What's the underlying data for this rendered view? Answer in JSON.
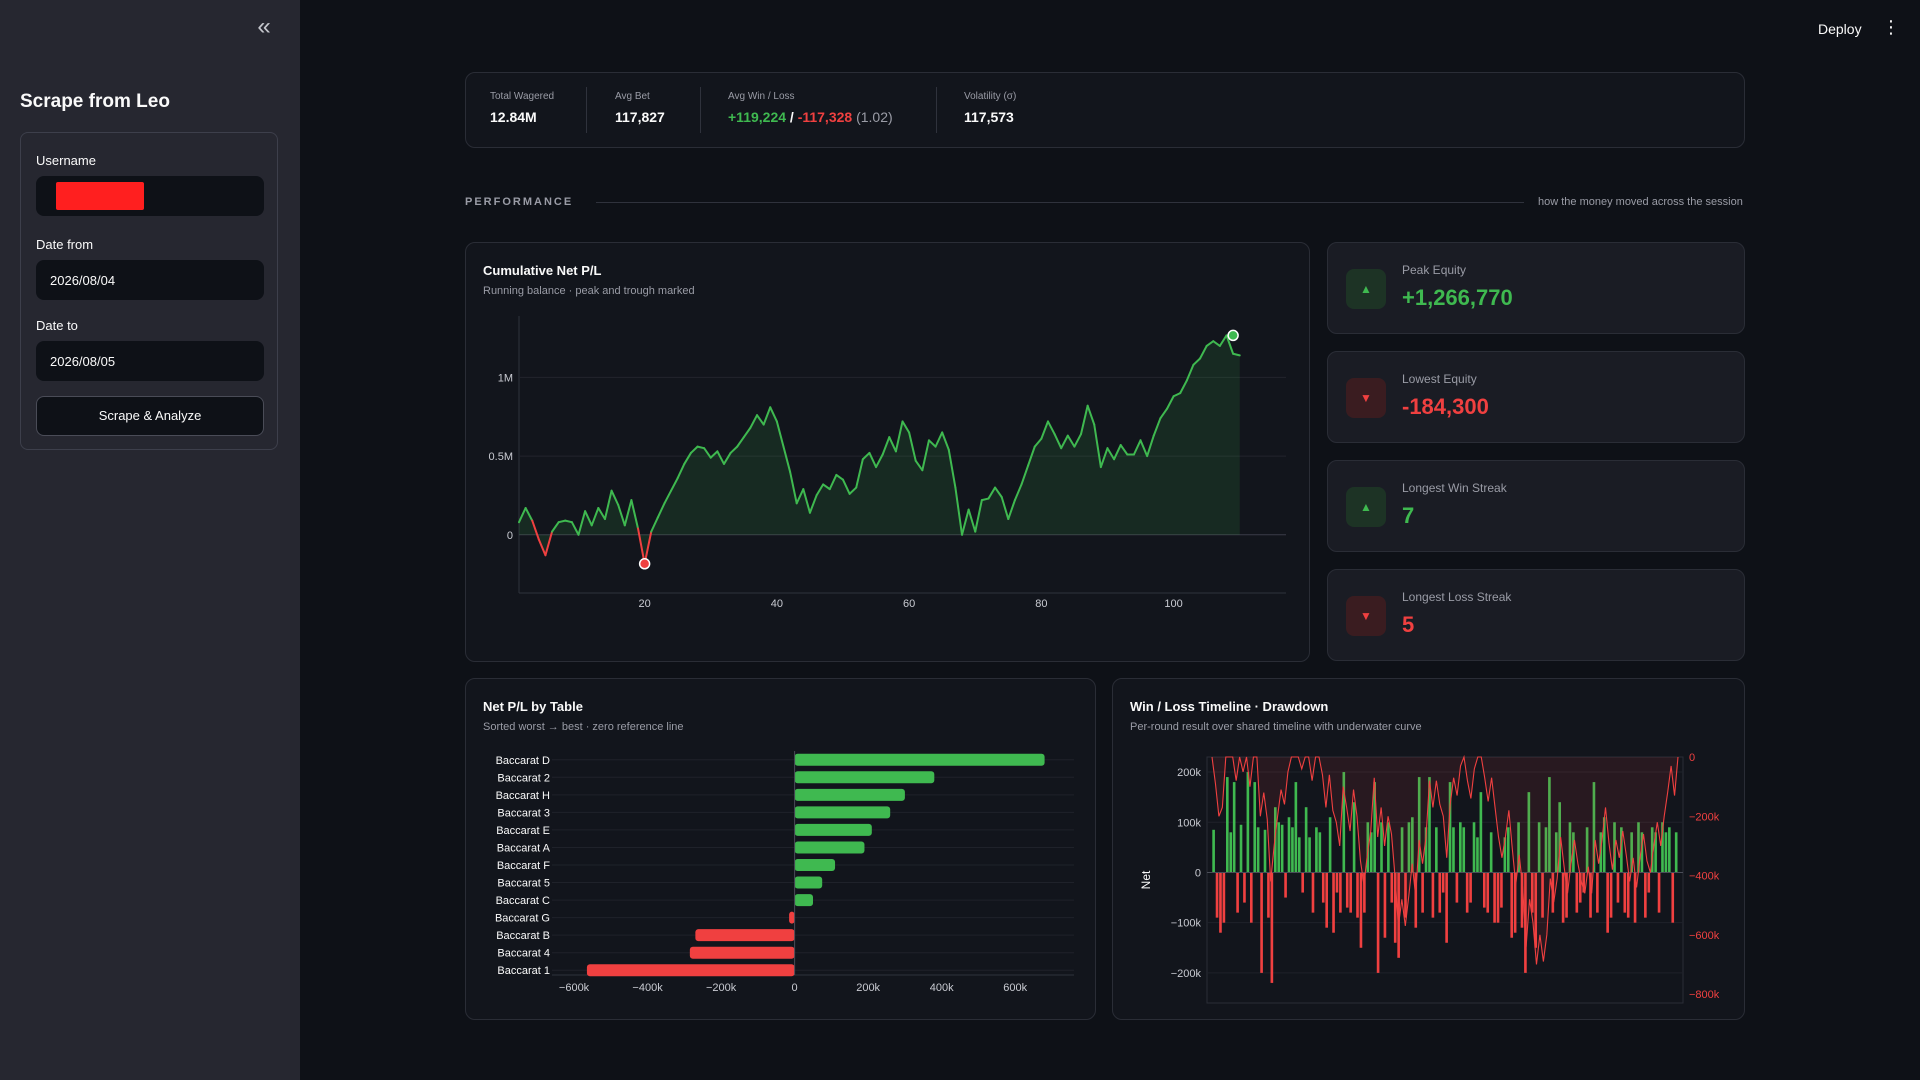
{
  "sidebar": {
    "collapse_glyph": "«",
    "title": "Scrape from Leo",
    "username_label": "Username",
    "date_from_label": "Date from",
    "date_from_value": "2026/08/04",
    "date_to_label": "Date to",
    "date_to_value": "2026/08/05",
    "submit_label": "Scrape & Analyze"
  },
  "header": {
    "deploy_label": "Deploy",
    "menu_glyph": "⋮"
  },
  "summary": {
    "total_wagered_label": "Total Wagered",
    "total_wagered": "12.84M",
    "avg_bet_label": "Avg Bet",
    "avg_bet": "117,827",
    "avg_winloss_label": "Avg Win / Loss",
    "avg_win": "+119,224",
    "slash": " / ",
    "avg_loss": "-117,328",
    "ratio": " (1.02)",
    "volatility_label": "Volatility (σ)",
    "volatility": "117,573"
  },
  "section": {
    "title": "PERFORMANCE",
    "subtitle": "how the money moved across the session"
  },
  "colors": {
    "green": "#3fb950",
    "red": "#f04040",
    "bg": "#0e1117",
    "card": "#12151c"
  },
  "stats": [
    {
      "label": "Peak Equity",
      "value": "+1,266,770",
      "direction": "up",
      "icon": "triangle-up-icon",
      "glyph": "▲"
    },
    {
      "label": "Lowest Equity",
      "value": "-184,300",
      "direction": "down",
      "icon": "triangle-down-icon",
      "glyph": "▼"
    },
    {
      "label": "Longest Win Streak",
      "value": "7",
      "direction": "up",
      "icon": "triangle-up-icon",
      "glyph": "▲"
    },
    {
      "label": "Longest Loss Streak",
      "value": "5",
      "direction": "down",
      "icon": "triangle-down-icon",
      "glyph": "▼"
    }
  ],
  "cumulative": {
    "title": "Cumulative Net P/L",
    "subtitle": "Running balance · peak and trough marked"
  },
  "bytable": {
    "title": "Net P/L by Table",
    "subtitle": "Sorted worst → best · zero reference line"
  },
  "timeline": {
    "title": "Win / Loss Timeline · Drawdown",
    "subtitle": "Per-round result over shared timeline with underwater curve"
  },
  "chart_data": [
    {
      "type": "area",
      "x_ticks": [
        20,
        40,
        60,
        80,
        100
      ],
      "y_ticks": [
        0,
        500000,
        1000000
      ],
      "y_tick_labels": [
        "0",
        "0.5M",
        "1M"
      ],
      "xlim": [
        1,
        117
      ],
      "ylim": [
        -370000,
        1390000
      ],
      "peak": {
        "x": 109,
        "y": 1266770
      },
      "trough": {
        "x": 20,
        "y": -184300
      },
      "x": [
        1,
        2,
        3,
        4,
        5,
        6,
        7,
        8,
        9,
        10,
        11,
        12,
        13,
        14,
        15,
        16,
        17,
        18,
        19,
        20,
        21,
        22,
        23,
        24,
        25,
        26,
        27,
        28,
        29,
        30,
        31,
        32,
        33,
        34,
        35,
        36,
        37,
        38,
        39,
        40,
        41,
        42,
        43,
        44,
        45,
        46,
        47,
        48,
        49,
        50,
        51,
        52,
        53,
        54,
        55,
        56,
        57,
        58,
        59,
        60,
        61,
        62,
        63,
        64,
        65,
        66,
        67,
        68,
        69,
        70,
        71,
        72,
        73,
        74,
        75,
        76,
        77,
        78,
        79,
        80,
        81,
        82,
        83,
        84,
        85,
        86,
        87,
        88,
        89,
        90,
        91,
        92,
        93,
        94,
        95,
        96,
        97,
        98,
        99,
        100,
        101,
        102,
        103,
        104,
        105,
        106,
        107,
        108,
        109,
        110
      ],
      "values": [
        80000,
        170000,
        90000,
        -30000,
        -130000,
        20000,
        80000,
        90000,
        80000,
        0,
        150000,
        60000,
        170000,
        100000,
        280000,
        190000,
        60000,
        220000,
        40000,
        -184300,
        20000,
        110000,
        200000,
        280000,
        360000,
        450000,
        520000,
        560000,
        550000,
        490000,
        530000,
        450000,
        520000,
        560000,
        620000,
        680000,
        760000,
        700000,
        810000,
        720000,
        560000,
        400000,
        200000,
        290000,
        140000,
        250000,
        320000,
        290000,
        380000,
        350000,
        260000,
        300000,
        480000,
        520000,
        430000,
        510000,
        620000,
        530000,
        720000,
        650000,
        470000,
        410000,
        600000,
        560000,
        650000,
        540000,
        300000,
        0,
        160000,
        20000,
        220000,
        230000,
        300000,
        240000,
        100000,
        220000,
        320000,
        440000,
        560000,
        610000,
        720000,
        640000,
        550000,
        630000,
        560000,
        640000,
        820000,
        700000,
        430000,
        550000,
        480000,
        570000,
        510000,
        510000,
        600000,
        500000,
        630000,
        740000,
        800000,
        880000,
        900000,
        980000,
        1080000,
        1120000,
        1200000,
        1230000,
        1200000,
        1266770,
        1150000,
        1140000
      ]
    },
    {
      "type": "bar",
      "orientation": "horizontal",
      "categories": [
        "Baccarat D",
        "Baccarat 2",
        "Baccarat H",
        "Baccarat 3",
        "Baccarat E",
        "Baccarat A",
        "Baccarat F",
        "Baccarat 5",
        "Baccarat C",
        "Baccarat G",
        "Baccarat B",
        "Baccarat 4",
        "Baccarat 1"
      ],
      "values": [
        680000,
        380000,
        300000,
        260000,
        210000,
        190000,
        110000,
        75000,
        50000,
        -15000,
        -270000,
        -285000,
        -565000
      ],
      "x_ticks": [
        -600000,
        -400000,
        -200000,
        0,
        200000,
        400000,
        600000
      ],
      "x_tick_labels": [
        "−600k",
        "−400k",
        "−200k",
        "0",
        "200k",
        "400k",
        "600k"
      ],
      "xlim": [
        -660000,
        760000
      ]
    },
    {
      "type": "bar",
      "ylabel": "Net",
      "y_ticks": [
        -200000,
        -100000,
        0,
        100000,
        200000
      ],
      "y_tick_labels": [
        "−200k",
        "−100k",
        "0",
        "100k",
        "200k"
      ],
      "ylim": [
        -260000,
        230000
      ],
      "y2_ticks": [
        0,
        -200000,
        -400000,
        -600000,
        -800000
      ],
      "y2_tick_labels": [
        "0",
        "−200k",
        "−400k",
        "−600k",
        "−800k"
      ],
      "y2lim": [
        -830000,
        0
      ],
      "net": [
        85000,
        -90000,
        -120000,
        -100000,
        190000,
        80000,
        180000,
        -80000,
        95000,
        -60000,
        200000,
        -100000,
        180000,
        90000,
        -200000,
        85000,
        -90000,
        -220000,
        130000,
        100000,
        95000,
        -50000,
        110000,
        90000,
        180000,
        70000,
        -40000,
        130000,
        70000,
        -80000,
        90000,
        80000,
        -60000,
        -110000,
        110000,
        -120000,
        -40000,
        -80000,
        200000,
        -70000,
        -80000,
        140000,
        -90000,
        -150000,
        -80000,
        100000,
        80000,
        180000,
        -200000,
        100000,
        -130000,
        100000,
        -60000,
        -140000,
        -170000,
        90000,
        -90000,
        100000,
        110000,
        -110000,
        190000,
        -80000,
        90000,
        190000,
        -90000,
        90000,
        -80000,
        -40000,
        -140000,
        180000,
        90000,
        -60000,
        100000,
        90000,
        -80000,
        -60000,
        100000,
        70000,
        160000,
        -70000,
        -80000,
        80000,
        -100000,
        -100000,
        -70000,
        70000,
        90000,
        -130000,
        -120000,
        100000,
        -110000,
        -200000,
        160000,
        -80000,
        -150000,
        100000,
        -90000,
        90000,
        190000,
        -80000,
        80000,
        140000,
        -100000,
        -90000,
        100000,
        80000,
        -80000,
        -60000,
        -40000,
        90000,
        -90000,
        180000,
        -80000,
        80000,
        110000,
        -120000,
        -90000,
        100000,
        -60000,
        90000,
        -80000,
        -90000,
        80000,
        -100000,
        100000,
        80000,
        -90000,
        -40000,
        90000,
        80000,
        -80000,
        100000,
        80000,
        90000,
        -100000,
        80000
      ],
      "drawdown": [
        0,
        -90000,
        -200000,
        -170000,
        0,
        0,
        0,
        -80000,
        0,
        -50000,
        0,
        -100000,
        0,
        0,
        -200000,
        -120000,
        -210000,
        -420000,
        -300000,
        -200000,
        -110000,
        -160000,
        -50000,
        0,
        0,
        0,
        -40000,
        0,
        0,
        -80000,
        0,
        0,
        -60000,
        -170000,
        -60000,
        -180000,
        -220000,
        -300000,
        -100000,
        -170000,
        -250000,
        -110000,
        -200000,
        -350000,
        -430000,
        -330000,
        -250000,
        -70000,
        -270000,
        -170000,
        -300000,
        -200000,
        -260000,
        -400000,
        -570000,
        -480000,
        -570000,
        -470000,
        -360000,
        -470000,
        -280000,
        -360000,
        -270000,
        -80000,
        -170000,
        -80000,
        -160000,
        -200000,
        -340000,
        -160000,
        -70000,
        -130000,
        -30000,
        0,
        -80000,
        -140000,
        -40000,
        0,
        0,
        -70000,
        -150000,
        -70000,
        -170000,
        -270000,
        -340000,
        -270000,
        -180000,
        -310000,
        -430000,
        -330000,
        -440000,
        -640000,
        -480000,
        -560000,
        -700000,
        -600000,
        -690000,
        -600000,
        -410000,
        -490000,
        -410000,
        -270000,
        -370000,
        -460000,
        -360000,
        -280000,
        -360000,
        -420000,
        -460000,
        -370000,
        -460000,
        -280000,
        -360000,
        -280000,
        -170000,
        -290000,
        -380000,
        -280000,
        -340000,
        -250000,
        -330000,
        -420000,
        -340000,
        -440000,
        -340000,
        -260000,
        -350000,
        -390000,
        -300000,
        -220000,
        -300000,
        -200000,
        -120000,
        -30000,
        -130000,
        0
      ]
    }
  ]
}
